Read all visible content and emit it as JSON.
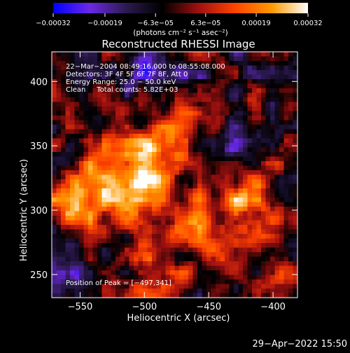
{
  "chart_data": {
    "type": "heatmap",
    "title": "Reconstructed RHESSI Image",
    "xlabel": "Heliocentric X (arcsec)",
    "ylabel": "Heliocentric Y (arcsec)",
    "xlim": [
      -572,
      -381
    ],
    "ylim": [
      232,
      423
    ],
    "x_ticks": [
      -550,
      -500,
      -450,
      -400
    ],
    "y_ticks": [
      250,
      300,
      350,
      400
    ],
    "x_tick_labels": [
      "−550",
      "−500",
      "−450",
      "−400"
    ],
    "y_tick_labels": [
      "250",
      "300",
      "350",
      "400"
    ],
    "colorbar": {
      "min": -0.00032,
      "max": 0.00032,
      "ticks": [
        -0.00032,
        -0.00019,
        -6.3e-05,
        6.3e-05,
        0.00019,
        0.00032
      ],
      "tick_labels": [
        "−0.00032",
        "−0.00019",
        "−6.3e−05",
        "6.3e−05",
        "0.00019",
        "0.00032"
      ],
      "units": "(photons cm⁻² s⁻¹ asec⁻²)",
      "colormap": [
        "#0000ff",
        "#6c28e6",
        "#2c1a50",
        "#000000",
        "#a01010",
        "#ff4400",
        "#ff9900",
        "#ffffff"
      ]
    },
    "annotations": [
      "22−Mar−2004 08:49:16.000 to 08:55:08.000",
      "Detectors: 3F 4F 5F 6F 7F 8F, Att 0",
      "Energy Range: 25.0 − 50.0 keV",
      "Clean     Total counts: 5.82E+03"
    ],
    "peak_label": "Position of Peak = [−497,341]",
    "peak": [
      -497,
      341
    ],
    "grid": false,
    "legend": "none"
  },
  "timestamp": "29−Apr−2022 15:50"
}
